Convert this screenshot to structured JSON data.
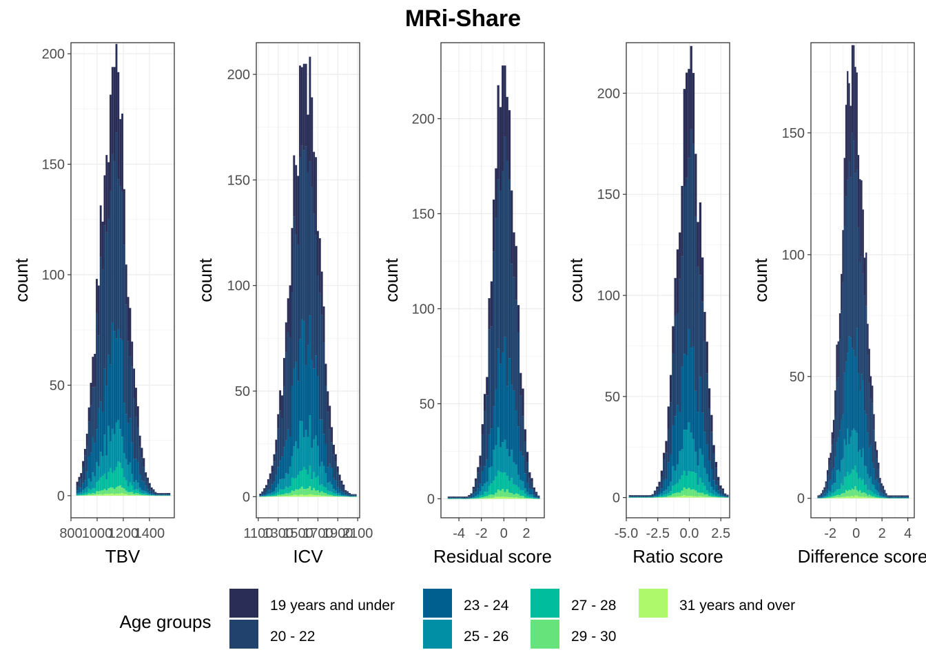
{
  "title": "MRi-Share",
  "colors": {
    "background": "#ffffff",
    "panel_border": "#333333",
    "grid_major": "#ebebeb",
    "grid_minor": "#f5f5f5",
    "tick_text": "#4d4d4d"
  },
  "legend": {
    "title": "Age groups",
    "items": [
      {
        "label": "19 years and under",
        "color": "#2a2e57"
      },
      {
        "label": "20 - 22",
        "color": "#21426c"
      },
      {
        "label": "23 - 24",
        "color": "#005f8e"
      },
      {
        "label": "25 - 26",
        "color": "#008fa4"
      },
      {
        "label": "27 - 28",
        "color": "#00bd9d"
      },
      {
        "label": "29 - 30",
        "color": "#66e37b"
      },
      {
        "label": "31 years and over",
        "color": "#aef86b"
      }
    ]
  },
  "chart_data": [
    {
      "type": "bar",
      "subtype": "stacked histogram",
      "xlabel": "TBV",
      "ylabel": "count",
      "xlim": [
        800,
        1590
      ],
      "ylim": [
        -10,
        205
      ],
      "xticks": [
        800,
        1000,
        1200,
        1400
      ],
      "xtick_labels": [
        "800",
        "1000",
        "1200",
        "1400"
      ],
      "yticks": [
        0,
        50,
        100,
        150,
        200
      ],
      "ytick_labels": [
        "0",
        "50",
        "100",
        "150",
        "200"
      ],
      "center": 1125,
      "sd": 105,
      "peak": 194,
      "bin_width": 15,
      "range": [
        840,
        1560
      ]
    },
    {
      "type": "bar",
      "subtype": "stacked histogram",
      "xlabel": "ICV",
      "ylabel": "count",
      "xlim": [
        1080,
        2120
      ],
      "ylim": [
        -10,
        215
      ],
      "xticks": [
        1100,
        1300,
        1500,
        1700,
        1900,
        2100
      ],
      "xtick_labels": [
        "1100",
        "1300",
        "1500",
        "1700",
        "1900",
        "2100"
      ],
      "yticks": [
        0,
        50,
        100,
        150,
        200
      ],
      "ytick_labels": [
        "0",
        "50",
        "100",
        "150",
        "200"
      ],
      "center": 1570,
      "sd": 145,
      "peak": 205,
      "bin_width": 20,
      "range": [
        1110,
        2090
      ]
    },
    {
      "type": "bar",
      "subtype": "stacked histogram",
      "xlabel": "Residual score",
      "ylabel": "count",
      "xlim": [
        -5.6,
        3.6
      ],
      "ylim": [
        -10,
        240
      ],
      "xticks": [
        -4,
        -2,
        0,
        2
      ],
      "xtick_labels": [
        "-4",
        "-2",
        "0",
        "2"
      ],
      "yticks": [
        0,
        50,
        100,
        150,
        200
      ],
      "ytick_labels": [
        "0",
        "50",
        "100",
        "150",
        "200"
      ],
      "center": 0.0,
      "sd": 1.0,
      "peak": 228,
      "bin_width": 0.2,
      "range": [
        -5.0,
        3.2
      ]
    },
    {
      "type": "bar",
      "subtype": "stacked histogram",
      "xlabel": "Ratio score",
      "ylabel": "count",
      "xlim": [
        -5.0,
        3.2
      ],
      "ylim": [
        -10,
        225
      ],
      "xticks": [
        -5.0,
        -2.5,
        0.0,
        2.5
      ],
      "xtick_labels": [
        "-5.0",
        "-2.5",
        "0.0",
        "2.5"
      ],
      "yticks": [
        0,
        50,
        100,
        150,
        200
      ],
      "ytick_labels": [
        "0",
        "50",
        "100",
        "150",
        "200"
      ],
      "center": 0.0,
      "sd": 0.95,
      "peak": 212,
      "bin_width": 0.18,
      "range": [
        -4.8,
        3.0
      ]
    },
    {
      "type": "bar",
      "subtype": "stacked histogram",
      "xlabel": "Difference score",
      "ylabel": "count",
      "xlim": [
        -3.5,
        4.5
      ],
      "ylim": [
        -8,
        187
      ],
      "xticks": [
        -2,
        0,
        2,
        4
      ],
      "xtick_labels": [
        "-2",
        "0",
        "2",
        "4"
      ],
      "yticks": [
        0,
        50,
        100,
        150
      ],
      "ytick_labels": [
        "0",
        "50",
        "100",
        "150"
      ],
      "center": -0.2,
      "sd": 0.85,
      "peak": 186,
      "bin_width": 0.12,
      "range": [
        -3.0,
        4.0
      ]
    }
  ]
}
